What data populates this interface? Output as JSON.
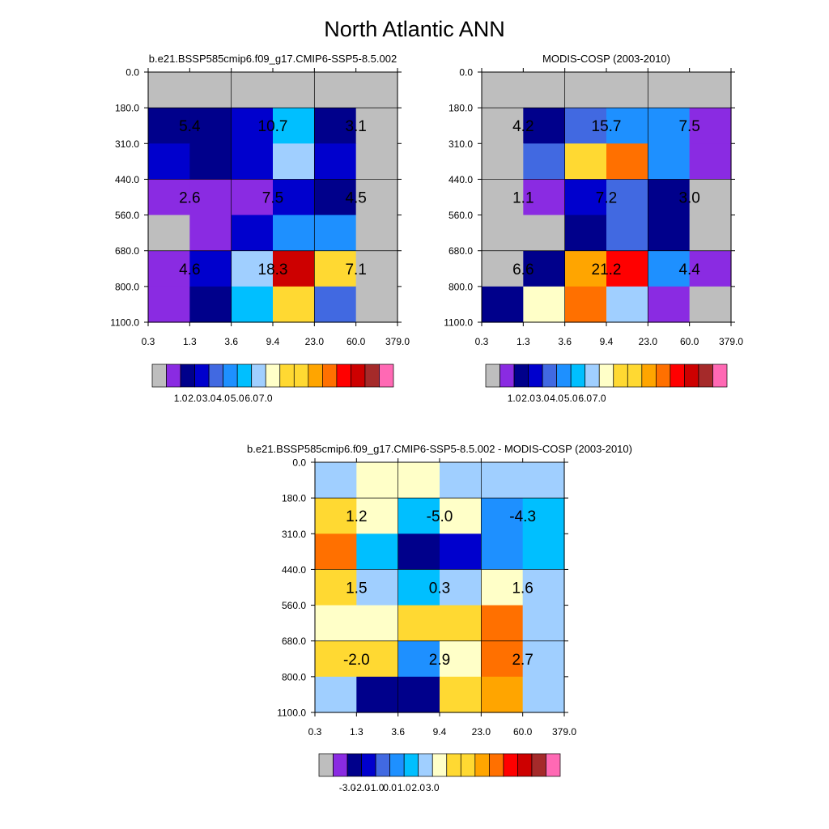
{
  "figure_title": "North Atlantic ANN",
  "palette": {
    "gray": "#bebebe",
    "purple": "#8a2be2",
    "navy": "#00008b",
    "mediumblue": "#0000cd",
    "royalblue": "#4169e1",
    "dodgerblue": "#1e90ff",
    "deepskyblue": "#00bfff",
    "lightskyblue": "#a0cfff",
    "lightyellow": "#ffffc8",
    "gold": "#ffd932",
    "orange": "#ffa500",
    "darkorange": "#ff7000",
    "red": "#ff0000",
    "darkred": "#cd0000",
    "brown": "#a52a2a",
    "hotpink": "#ff69b4"
  },
  "chart_data": [
    {
      "type": "heatmap",
      "title": "b.e21.BSSP585cmip6.f09_g17.CMIP6-SSP5-8.5.002",
      "x_ticks": [
        "0.3",
        "1.3",
        "3.6",
        "9.4",
        "23.0",
        "60.0",
        "379.0"
      ],
      "y_ticks": [
        "0.0",
        "180.0",
        "310.0",
        "440.0",
        "560.0",
        "680.0",
        "800.0",
        "1100.0"
      ],
      "cells": [
        [
          "gray",
          "gray",
          "gray",
          "gray",
          "gray",
          "gray"
        ],
        [
          "navy",
          "navy",
          "mediumblue",
          "deepskyblue",
          "navy",
          "gray"
        ],
        [
          "mediumblue",
          "navy",
          "mediumblue",
          "lightskyblue",
          "mediumblue",
          "gray"
        ],
        [
          "purple",
          "purple",
          "purple",
          "mediumblue",
          "navy",
          "gray"
        ],
        [
          "gray",
          "purple",
          "mediumblue",
          "dodgerblue",
          "dodgerblue",
          "gray"
        ],
        [
          "purple",
          "mediumblue",
          "lightskyblue",
          "darkred",
          "gold",
          "gray"
        ],
        [
          "purple",
          "navy",
          "deepskyblue",
          "gold",
          "royalblue",
          "gray"
        ]
      ],
      "annotations": [
        {
          "row": 0,
          "col": 0,
          "text": "5.4"
        },
        {
          "row": 0,
          "col": 1,
          "text": "10.7"
        },
        {
          "row": 0,
          "col": 2,
          "text": "3.1"
        },
        {
          "row": 1,
          "col": 0,
          "text": "2.6"
        },
        {
          "row": 1,
          "col": 1,
          "text": "7.5"
        },
        {
          "row": 1,
          "col": 2,
          "text": "4.5"
        },
        {
          "row": 2,
          "col": 0,
          "text": "4.6"
        },
        {
          "row": 2,
          "col": 1,
          "text": "18.3"
        },
        {
          "row": 2,
          "col": 2,
          "text": "7.1"
        }
      ],
      "colorbar": {
        "colors": [
          "gray",
          "purple",
          "navy",
          "mediumblue",
          "royalblue",
          "dodgerblue",
          "deepskyblue",
          "lightskyblue",
          "lightyellow",
          "gold",
          "gold",
          "orange",
          "darkorange",
          "red",
          "darkred",
          "brown",
          "hotpink"
        ],
        "labels": [
          "1.0",
          "2.0",
          "3.0",
          "4.0",
          "5.0",
          "6.0",
          "7.0"
        ]
      }
    },
    {
      "type": "heatmap",
      "title": "MODIS-COSP (2003-2010)",
      "x_ticks": [
        "0.3",
        "1.3",
        "3.6",
        "9.4",
        "23.0",
        "60.0",
        "379.0"
      ],
      "y_ticks": [
        "0.0",
        "180.0",
        "310.0",
        "440.0",
        "560.0",
        "680.0",
        "800.0",
        "1100.0"
      ],
      "cells": [
        [
          "gray",
          "gray",
          "gray",
          "gray",
          "gray",
          "gray"
        ],
        [
          "gray",
          "navy",
          "royalblue",
          "dodgerblue",
          "dodgerblue",
          "purple"
        ],
        [
          "gray",
          "royalblue",
          "gold",
          "darkorange",
          "dodgerblue",
          "purple"
        ],
        [
          "gray",
          "purple",
          "mediumblue",
          "royalblue",
          "navy",
          "gray"
        ],
        [
          "gray",
          "gray",
          "navy",
          "royalblue",
          "navy",
          "gray"
        ],
        [
          "gray",
          "navy",
          "orange",
          "red",
          "dodgerblue",
          "purple"
        ],
        [
          "navy",
          "lightyellow",
          "darkorange",
          "lightskyblue",
          "purple",
          "gray"
        ]
      ],
      "annotations": [
        {
          "row": 0,
          "col": 0,
          "text": "4.2"
        },
        {
          "row": 0,
          "col": 1,
          "text": "15.7"
        },
        {
          "row": 0,
          "col": 2,
          "text": "7.5"
        },
        {
          "row": 1,
          "col": 0,
          "text": "1.1"
        },
        {
          "row": 1,
          "col": 1,
          "text": "7.2"
        },
        {
          "row": 1,
          "col": 2,
          "text": "3.0"
        },
        {
          "row": 2,
          "col": 0,
          "text": "6.6"
        },
        {
          "row": 2,
          "col": 1,
          "text": "21.2"
        },
        {
          "row": 2,
          "col": 2,
          "text": "4.4"
        }
      ],
      "colorbar": {
        "colors": [
          "gray",
          "purple",
          "navy",
          "mediumblue",
          "royalblue",
          "dodgerblue",
          "deepskyblue",
          "lightskyblue",
          "lightyellow",
          "gold",
          "gold",
          "orange",
          "darkorange",
          "red",
          "darkred",
          "brown",
          "hotpink"
        ],
        "labels": [
          "1.0",
          "2.0",
          "3.0",
          "4.0",
          "5.0",
          "6.0",
          "7.0"
        ]
      }
    },
    {
      "type": "heatmap",
      "title": "b.e21.BSSP585cmip6.f09_g17.CMIP6-SSP5-8.5.002 - MODIS-COSP (2003-2010)",
      "x_ticks": [
        "0.3",
        "1.3",
        "3.6",
        "9.4",
        "23.0",
        "60.0",
        "379.0"
      ],
      "y_ticks": [
        "0.0",
        "180.0",
        "310.0",
        "440.0",
        "560.0",
        "680.0",
        "800.0",
        "1100.0"
      ],
      "cells": [
        [
          "lightskyblue",
          "lightyellow",
          "lightyellow",
          "lightskyblue",
          "lightskyblue",
          "lightskyblue"
        ],
        [
          "gold",
          "lightyellow",
          "deepskyblue",
          "lightyellow",
          "dodgerblue",
          "deepskyblue"
        ],
        [
          "darkorange",
          "deepskyblue",
          "navy",
          "mediumblue",
          "dodgerblue",
          "deepskyblue"
        ],
        [
          "gold",
          "lightskyblue",
          "deepskyblue",
          "lightskyblue",
          "lightyellow",
          "lightskyblue"
        ],
        [
          "lightyellow",
          "lightyellow",
          "gold",
          "gold",
          "darkorange",
          "lightskyblue"
        ],
        [
          "gold",
          "gold",
          "dodgerblue",
          "lightyellow",
          "darkorange",
          "lightskyblue"
        ],
        [
          "lightskyblue",
          "navy",
          "navy",
          "gold",
          "orange",
          "lightskyblue"
        ]
      ],
      "annotations": [
        {
          "row": 0,
          "col": 0,
          "text": "1.2"
        },
        {
          "row": 0,
          "col": 1,
          "text": "-5.0"
        },
        {
          "row": 0,
          "col": 2,
          "text": "-4.3"
        },
        {
          "row": 1,
          "col": 0,
          "text": "1.5"
        },
        {
          "row": 1,
          "col": 1,
          "text": "0.3"
        },
        {
          "row": 1,
          "col": 2,
          "text": "1.6"
        },
        {
          "row": 2,
          "col": 0,
          "text": "-2.0"
        },
        {
          "row": 2,
          "col": 1,
          "text": "2.9"
        },
        {
          "row": 2,
          "col": 2,
          "text": "2.7"
        }
      ],
      "colorbar": {
        "colors": [
          "gray",
          "purple",
          "navy",
          "mediumblue",
          "royalblue",
          "dodgerblue",
          "deepskyblue",
          "lightskyblue",
          "lightyellow",
          "gold",
          "gold",
          "orange",
          "darkorange",
          "red",
          "darkred",
          "brown",
          "hotpink"
        ],
        "labels": [
          "-3.0",
          "-2.0",
          "-1.0",
          "0.0",
          "1.0",
          "2.0",
          "3.0"
        ]
      }
    }
  ]
}
